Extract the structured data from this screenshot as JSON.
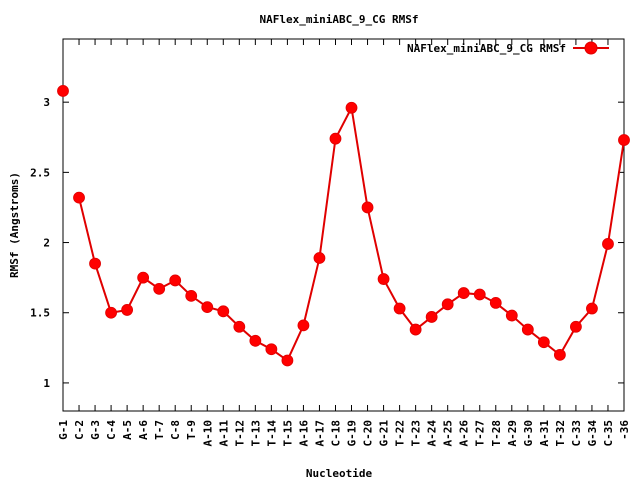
{
  "chart_data": {
    "type": "line",
    "title": "NAFlex_miniABC_9_CG RMSf",
    "xlabel": "Nucleotide",
    "ylabel": "RMSf (Angstroms)",
    "ylim": [
      0.8,
      3.45
    ],
    "yticks": [
      "1",
      "1.5",
      "2",
      "2.5",
      "3"
    ],
    "grid": false,
    "legend": "top-right",
    "series_color": "#ff0000",
    "line_color": "#e00000",
    "categories": [
      "G-1",
      "C-2",
      "G-3",
      "C-4",
      "A-5",
      "A-6",
      "T-7",
      "C-8",
      "T-9",
      "A-10",
      "A-11",
      "T-12",
      "T-13",
      "T-14",
      "T-15",
      "A-16",
      "A-17",
      "C-18",
      "G-19",
      "C-20",
      "G-21",
      "T-22",
      "T-23",
      "A-24",
      "A-25",
      "A-26",
      "T-27",
      "T-28",
      "A-29",
      "G-30",
      "A-31",
      "T-32",
      "C-33",
      "G-34",
      "C-35",
      "-36"
    ],
    "series": [
      {
        "name": "NAFlex_miniABC_9_CG RMSf",
        "values": [
          3.08,
          2.32,
          1.85,
          1.5,
          1.52,
          1.75,
          1.67,
          1.73,
          1.62,
          1.54,
          1.51,
          1.4,
          1.3,
          1.24,
          1.16,
          1.41,
          1.89,
          2.74,
          2.96,
          2.25,
          1.74,
          1.53,
          1.38,
          1.47,
          1.56,
          1.64,
          1.63,
          1.57,
          1.48,
          1.38,
          1.29,
          1.2,
          1.4,
          1.53,
          1.99,
          2.73
        ]
      }
    ]
  }
}
